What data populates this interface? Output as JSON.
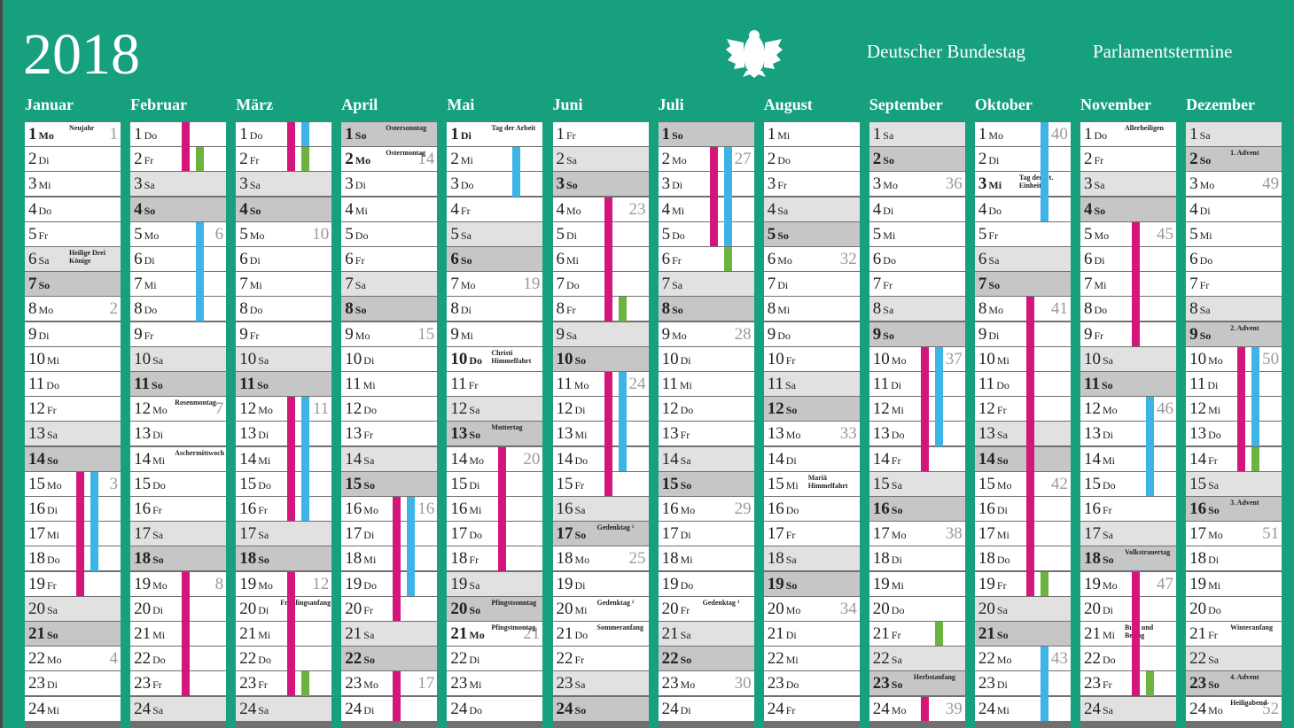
{
  "header": {
    "year": "2018",
    "institution": "Deutscher Bundestag",
    "subtitle": "Parlamentstermine"
  },
  "row_style": {
    "Sa": {
      "fill": "#e1e1e1"
    },
    "So": {
      "fill": "#c6c6c6",
      "bold": true
    }
  },
  "bar_colors": {
    "sitting": "#d4157c",
    "blue": "#3cb4e5",
    "green": "#6cb33f"
  },
  "days": [
    1,
    2,
    3,
    4,
    5,
    6,
    7,
    8,
    9,
    10,
    11,
    12,
    13,
    14,
    15,
    16,
    17,
    18,
    19,
    20,
    21,
    22,
    23,
    24
  ],
  "months": [
    {
      "name": "Januar",
      "weekdays": [
        "Mo",
        "Di",
        "Mi",
        "Do",
        "Fr",
        "Sa",
        "So",
        "Mo",
        "Di",
        "Mi",
        "Do",
        "Fr",
        "Sa",
        "So",
        "Mo",
        "Di",
        "Mi",
        "Do",
        "Fr",
        "Sa",
        "So",
        "Mo",
        "Di",
        "Mi"
      ],
      "kw": {
        "1": 1,
        "8": 2,
        "15": 3,
        "22": 4
      },
      "notes": {
        "1": "Neujahr",
        "6": "Heilige Drei Könige"
      },
      "holidays": [
        1
      ],
      "bars": [
        {
          "color": "sitting",
          "from": 15,
          "to": 19
        },
        {
          "color": "blue",
          "from": 15,
          "to": 18
        }
      ]
    },
    {
      "name": "Februar",
      "weekdays": [
        "Do",
        "Fr",
        "Sa",
        "So",
        "Mo",
        "Di",
        "Mi",
        "Do",
        "Fr",
        "Sa",
        "So",
        "Mo",
        "Di",
        "Mi",
        "Do",
        "Fr",
        "Sa",
        "So",
        "Mo",
        "Di",
        "Mi",
        "Do",
        "Fr",
        "Sa"
      ],
      "kw": {
        "5": 6,
        "12": 7,
        "19": 8
      },
      "notes": {
        "12": "Rosenmontag",
        "14": "Aschermittwoch"
      },
      "holidays": [],
      "bars": [
        {
          "color": "sitting",
          "from": 1,
          "to": 2
        },
        {
          "color": "green",
          "from": 2,
          "to": 2
        },
        {
          "color": "blue",
          "from": 5,
          "to": 8
        },
        {
          "color": "sitting",
          "from": 19,
          "to": 23
        }
      ]
    },
    {
      "name": "März",
      "weekdays": [
        "Do",
        "Fr",
        "Sa",
        "So",
        "Mo",
        "Di",
        "Mi",
        "Do",
        "Fr",
        "Sa",
        "So",
        "Mo",
        "Di",
        "Mi",
        "Do",
        "Fr",
        "Sa",
        "So",
        "Mo",
        "Di",
        "Mi",
        "Do",
        "Fr",
        "Sa"
      ],
      "kw": {
        "5": 10,
        "12": 11,
        "19": 12
      },
      "notes": {
        "20": "Frühlingsanfang"
      },
      "holidays": [],
      "bars": [
        {
          "color": "sitting",
          "from": 1,
          "to": 2
        },
        {
          "color": "blue",
          "from": 1,
          "to": 1
        },
        {
          "color": "green",
          "from": 2,
          "to": 2
        },
        {
          "color": "sitting",
          "from": 12,
          "to": 16
        },
        {
          "color": "blue",
          "from": 12,
          "to": 16
        },
        {
          "color": "sitting",
          "from": 19,
          "to": 23
        },
        {
          "color": "green",
          "from": 23,
          "to": 23
        }
      ]
    },
    {
      "name": "April",
      "weekdays": [
        "So",
        "Mo",
        "Di",
        "Mi",
        "Do",
        "Fr",
        "Sa",
        "So",
        "Mo",
        "Di",
        "Mi",
        "Do",
        "Fr",
        "Sa",
        "So",
        "Mo",
        "Di",
        "Mi",
        "Do",
        "Fr",
        "Sa",
        "So",
        "Mo",
        "Di"
      ],
      "kw": {
        "2": 14,
        "9": 15,
        "16": 16,
        "23": 17
      },
      "notes": {
        "1": "Ostersonntag",
        "2": "Ostermontag"
      },
      "holidays": [
        2
      ],
      "bars": [
        {
          "color": "sitting",
          "from": 16,
          "to": 20
        },
        {
          "color": "blue",
          "from": 16,
          "to": 19
        },
        {
          "color": "sitting",
          "from": 23,
          "to": 24
        }
      ]
    },
    {
      "name": "Mai",
      "weekdays": [
        "Di",
        "Mi",
        "Do",
        "Fr",
        "Sa",
        "So",
        "Mo",
        "Di",
        "Mi",
        "Do",
        "Fr",
        "Sa",
        "So",
        "Mo",
        "Di",
        "Mi",
        "Do",
        "Fr",
        "Sa",
        "So",
        "Mo",
        "Di",
        "Mi",
        "Do"
      ],
      "kw": {
        "7": 19,
        "14": 20,
        "21": 21
      },
      "notes": {
        "1": "Tag der Arbeit",
        "10": "Christi Himmelfahrt",
        "13": "Muttertag",
        "20": "Pfingstsonntag",
        "21": "Pfingstmontag"
      },
      "holidays": [
        1,
        10,
        21
      ],
      "bars": [
        {
          "color": "blue",
          "from": 2,
          "to": 3
        },
        {
          "color": "sitting",
          "from": 14,
          "to": 18
        }
      ]
    },
    {
      "name": "Juni",
      "weekdays": [
        "Fr",
        "Sa",
        "So",
        "Mo",
        "Di",
        "Mi",
        "Do",
        "Fr",
        "Sa",
        "So",
        "Mo",
        "Di",
        "Mi",
        "Do",
        "Fr",
        "Sa",
        "So",
        "Mo",
        "Di",
        "Mi",
        "Do",
        "Fr",
        "Sa",
        "So"
      ],
      "kw": {
        "4": 23,
        "11": 24,
        "18": 25
      },
      "notes": {
        "17": "Gedenktag ¹",
        "20": "Gedenktag ²",
        "21": "Sommeranfang"
      },
      "holidays": [],
      "bars": [
        {
          "color": "sitting",
          "from": 4,
          "to": 8
        },
        {
          "color": "green",
          "from": 8,
          "to": 8
        },
        {
          "color": "sitting",
          "from": 11,
          "to": 15
        },
        {
          "color": "blue",
          "from": 11,
          "to": 14
        }
      ]
    },
    {
      "name": "Juli",
      "weekdays": [
        "So",
        "Mo",
        "Di",
        "Mi",
        "Do",
        "Fr",
        "Sa",
        "So",
        "Mo",
        "Di",
        "Mi",
        "Do",
        "Fr",
        "Sa",
        "So",
        "Mo",
        "Di",
        "Mi",
        "Do",
        "Fr",
        "Sa",
        "So",
        "Mo",
        "Di"
      ],
      "kw": {
        "2": 27,
        "9": 28,
        "16": 29,
        "23": 30
      },
      "notes": {
        "20": "Gedenktag ³"
      },
      "holidays": [],
      "bars": [
        {
          "color": "sitting",
          "from": 2,
          "to": 5
        },
        {
          "color": "blue",
          "from": 2,
          "to": 5
        },
        {
          "color": "green",
          "from": 6,
          "to": 6
        }
      ]
    },
    {
      "name": "August",
      "weekdays": [
        "Mi",
        "Do",
        "Fr",
        "Sa",
        "So",
        "Mo",
        "Di",
        "Mi",
        "Do",
        "Fr",
        "Sa",
        "So",
        "Mo",
        "Di",
        "Mi",
        "Do",
        "Fr",
        "Sa",
        "So",
        "Mo",
        "Di",
        "Mi",
        "Do",
        "Fr"
      ],
      "kw": {
        "6": 32,
        "13": 33,
        "20": 34
      },
      "notes": {
        "15": "Mariä Himmelfahrt"
      },
      "holidays": [],
      "bars": []
    },
    {
      "name": "September",
      "weekdays": [
        "Sa",
        "So",
        "Mo",
        "Di",
        "Mi",
        "Do",
        "Fr",
        "Sa",
        "So",
        "Mo",
        "Di",
        "Mi",
        "Do",
        "Fr",
        "Sa",
        "So",
        "Mo",
        "Di",
        "Mi",
        "Do",
        "Fr",
        "Sa",
        "So",
        "Mo"
      ],
      "kw": {
        "3": 36,
        "10": 37,
        "17": 38,
        "24": 39
      },
      "notes": {
        "23": "Herbstanfang"
      },
      "holidays": [],
      "bars": [
        {
          "color": "sitting",
          "from": 10,
          "to": 14
        },
        {
          "color": "blue",
          "from": 10,
          "to": 13
        },
        {
          "color": "green",
          "from": 21,
          "to": 21
        },
        {
          "color": "sitting",
          "from": 24,
          "to": 24
        }
      ]
    },
    {
      "name": "Oktober",
      "weekdays": [
        "Mo",
        "Di",
        "Mi",
        "Do",
        "Fr",
        "Sa",
        "So",
        "Mo",
        "Di",
        "Mi",
        "Do",
        "Fr",
        "Sa",
        "So",
        "Mo",
        "Di",
        "Mi",
        "Do",
        "Fr",
        "Sa",
        "So",
        "Mo",
        "Di",
        "Mi"
      ],
      "kw": {
        "1": 40,
        "8": 41,
        "15": 42,
        "22": 43
      },
      "notes": {
        "3": "Tag der Dt. Einheit"
      },
      "holidays": [
        3
      ],
      "bars": [
        {
          "color": "blue",
          "from": 1,
          "to": 4
        },
        {
          "color": "sitting",
          "from": 8,
          "to": 19
        },
        {
          "color": "green",
          "from": 19,
          "to": 19
        },
        {
          "color": "blue",
          "from": 22,
          "to": 24
        }
      ]
    },
    {
      "name": "November",
      "weekdays": [
        "Do",
        "Fr",
        "Sa",
        "So",
        "Mo",
        "Di",
        "Mi",
        "Do",
        "Fr",
        "Sa",
        "So",
        "Mo",
        "Di",
        "Mi",
        "Do",
        "Fr",
        "Sa",
        "So",
        "Mo",
        "Di",
        "Mi",
        "Do",
        "Fr",
        "Sa"
      ],
      "kw": {
        "5": 45,
        "12": 46,
        "19": 47
      },
      "notes": {
        "1": "Allerheiligen",
        "18": "Volkstrauertag",
        "21": "Buß- und Bettag"
      },
      "holidays": [],
      "bars": [
        {
          "color": "sitting",
          "from": 5,
          "to": 9
        },
        {
          "color": "blue",
          "from": 12,
          "to": 15
        },
        {
          "color": "sitting",
          "from": 19,
          "to": 23
        },
        {
          "color": "green",
          "from": 23,
          "to": 23
        }
      ]
    },
    {
      "name": "Dezember",
      "weekdays": [
        "Sa",
        "So",
        "Mo",
        "Di",
        "Mi",
        "Do",
        "Fr",
        "Sa",
        "So",
        "Mo",
        "Di",
        "Mi",
        "Do",
        "Fr",
        "Sa",
        "So",
        "Mo",
        "Di",
        "Mi",
        "Do",
        "Fr",
        "Sa",
        "So",
        "Mo"
      ],
      "kw": {
        "3": 49,
        "10": 50,
        "17": 51,
        "24": 52
      },
      "notes": {
        "2": "1. Advent",
        "9": "2. Advent",
        "16": "3. Advent",
        "21": "Winteranfang",
        "23": "4. Advent",
        "24": "Heiligabend"
      },
      "holidays": [],
      "bars": [
        {
          "color": "sitting",
          "from": 10,
          "to": 14
        },
        {
          "color": "blue",
          "from": 10,
          "to": 13
        },
        {
          "color": "green",
          "from": 14,
          "to": 14
        }
      ]
    }
  ]
}
